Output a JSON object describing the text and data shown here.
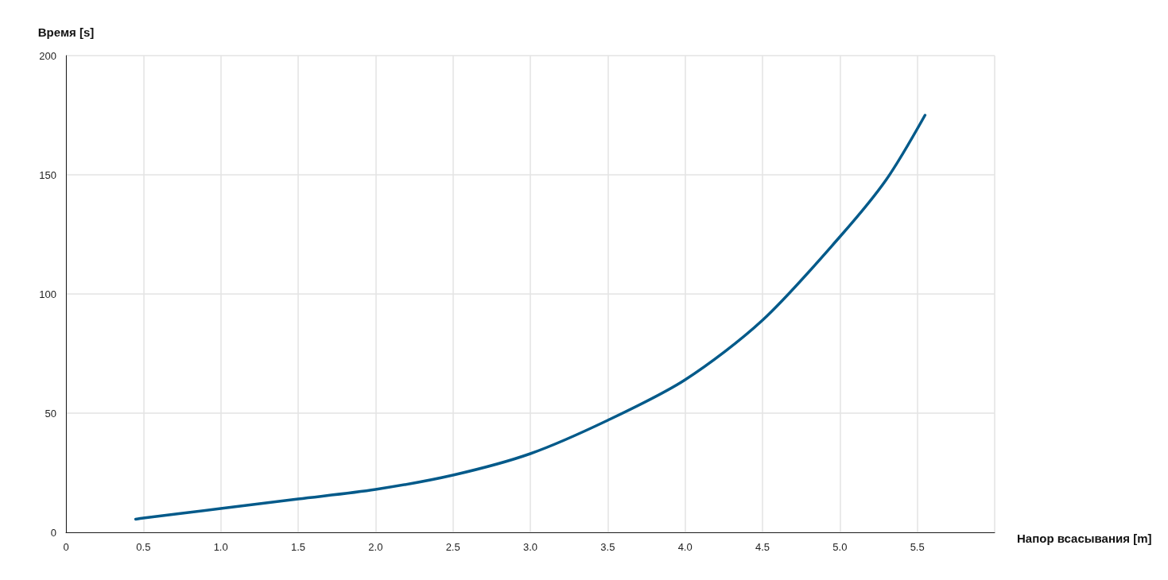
{
  "chart_data": {
    "type": "line",
    "xlabel": "Напор всасывания [m]",
    "ylabel": "Время [s]",
    "x": [
      0.45,
      0.5,
      1.0,
      1.5,
      2.0,
      2.5,
      3.0,
      3.5,
      4.0,
      4.5,
      5.0,
      5.3,
      5.55
    ],
    "series": [
      {
        "color": "#035a8a",
        "values": [
          5.5,
          6,
          10,
          14,
          18,
          24,
          33,
          47,
          64,
          89,
          124,
          148,
          175
        ]
      }
    ],
    "xlim": [
      0,
      6
    ],
    "xticks": [
      0,
      0.5,
      {
        "value": 1,
        "label": "1.0"
      },
      1.5,
      {
        "value": 2,
        "label": "2.0"
      },
      2.5,
      {
        "value": 3,
        "label": "3.0"
      },
      3.5,
      {
        "value": 4,
        "label": "4.0"
      },
      4.5,
      {
        "value": 5,
        "label": "5.0"
      },
      5.5,
      {
        "value": 6,
        "label": null
      }
    ],
    "ylim": [
      0,
      200
    ],
    "yticks": [
      0,
      50,
      100,
      150,
      200
    ],
    "grid": true,
    "marker": "none",
    "line_style": "solid"
  }
}
